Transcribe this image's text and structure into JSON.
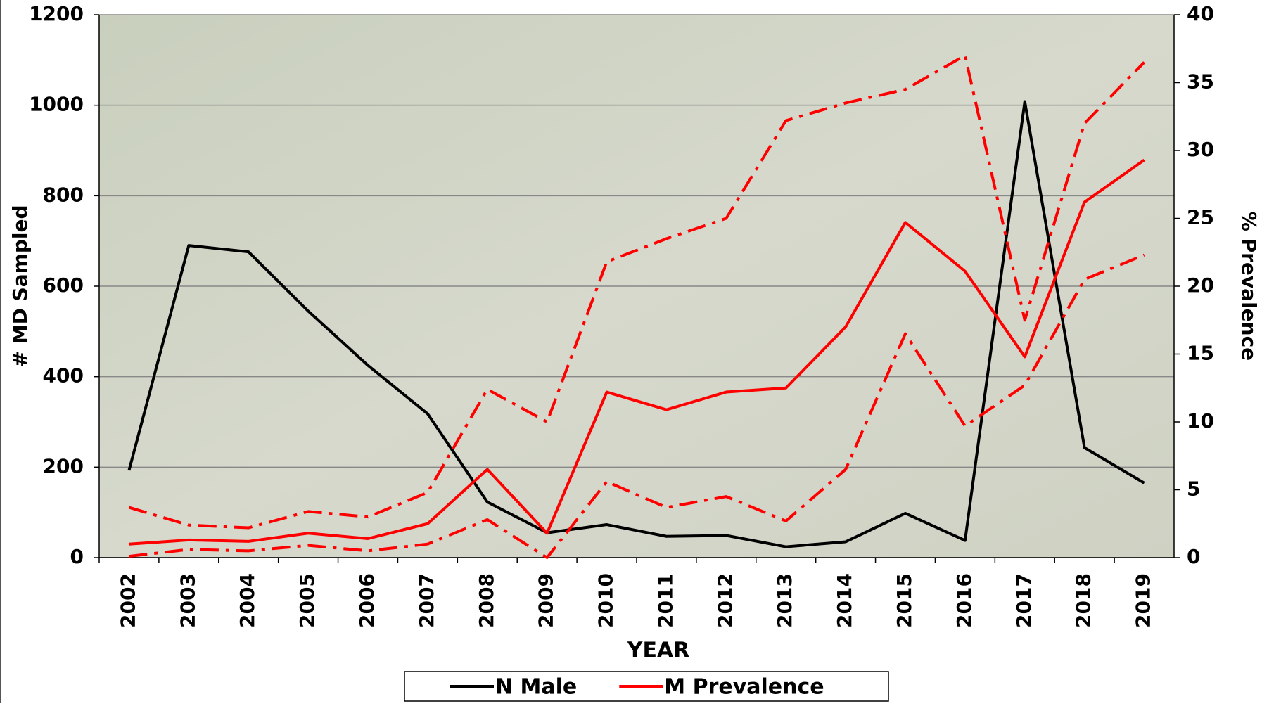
{
  "chart_data": {
    "type": "line",
    "categories": [
      "2002",
      "2003",
      "2004",
      "2005",
      "2006",
      "2007",
      "2008",
      "2009",
      "2010",
      "2011",
      "2012",
      "2013",
      "2014",
      "2015",
      "2016",
      "2017",
      "2018",
      "2019"
    ],
    "x_label": "YEAR",
    "y_label": "# MD Sampled",
    "y2_label": "% Prevalence",
    "ylim": [
      0,
      1200
    ],
    "yticks": [
      0,
      200,
      400,
      600,
      800,
      1000,
      1200
    ],
    "y2lim": [
      0,
      40
    ],
    "y2ticks": [
      0,
      5,
      10,
      15,
      20,
      25,
      30,
      35,
      40
    ],
    "grid": true,
    "legend": "bottom",
    "series": [
      {
        "name": "N Male",
        "color": "#000000",
        "values": [
          193,
          690,
          676,
          545,
          425,
          318,
          123,
          55,
          73,
          47,
          49,
          24,
          35,
          98,
          38,
          1008,
          243,
          165
        ]
      },
      {
        "name": "M Prevalence",
        "color": "#ff0000",
        "axis": "y2",
        "values": [
          1.0,
          1.3,
          1.2,
          1.8,
          1.4,
          2.5,
          6.5,
          1.8,
          12.2,
          10.9,
          12.2,
          12.5,
          17.0,
          24.7,
          21.1,
          14.8,
          26.2,
          29.3
        ]
      },
      {
        "color": "#ff0000",
        "axis": "y2",
        "dash": "dashdot",
        "values": [
          3.7,
          2.4,
          2.2,
          3.4,
          3.0,
          4.8,
          12.4,
          10.0,
          21.8,
          23.5,
          25.0,
          32.2,
          33.5,
          34.5,
          37.0,
          17.5,
          32.0,
          36.5
        ]
      },
      {
        "color": "#ff0000",
        "axis": "y2",
        "dash": "dashdot",
        "values": [
          0.1,
          0.6,
          0.5,
          0.9,
          0.5,
          1.0,
          2.8,
          0.0,
          5.6,
          3.7,
          4.5,
          2.7,
          6.5,
          16.5,
          9.7,
          12.7,
          20.5,
          22.3
        ]
      }
    ]
  }
}
